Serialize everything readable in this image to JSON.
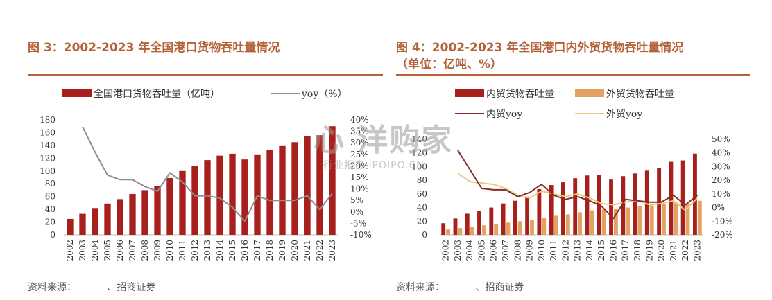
{
  "left": {
    "title": "图 3：2002-2023 年全国港口货物吞吐量情况",
    "source_prefix": "资料来源：",
    "source_suffix": "、招商证券",
    "legend": [
      "全国港口货物吞吐量（亿吨）",
      "yoy（%）"
    ]
  },
  "right": {
    "title_line1": "图 4：2002-2023 年全国港口内外贸货物吞吐量情况",
    "title_line2": "（单位：亿吨、%）",
    "source_prefix": "资料来源：",
    "source_suffix": "、招商证券",
    "legend": [
      "内贸货物吞吐量",
      "外贸货物吞吐量",
      "内贸yoy",
      "外贸yoy"
    ]
  },
  "watermark": {
    "main": "心 洋购家",
    "sub": "行业报告 IPOIPO.CN"
  },
  "colors": {
    "bar": "#a8201d",
    "line_gray": "#8c8c8c",
    "bar_foreign": "#e3a262",
    "line_domestic": "#8a2a2a",
    "line_foreign": "#e6cc7a",
    "accent": "#b4623a"
  },
  "chart_data": [
    {
      "type": "bar",
      "categories": [
        "2002",
        "2003",
        "2004",
        "2005",
        "2006",
        "2007",
        "2008",
        "2009",
        "2010",
        "2011",
        "2012",
        "2013",
        "2014",
        "2015",
        "2016",
        "2017",
        "2018",
        "2019",
        "2020",
        "2021",
        "2022",
        "2023"
      ],
      "series": [
        {
          "name": "全国港口货物吞吐量（亿吨）",
          "type": "bar",
          "axis": "left",
          "values": [
            25,
            33,
            42,
            49,
            56,
            64,
            70,
            76,
            89,
            100,
            108,
            117,
            124,
            127,
            118,
            126,
            133,
            139,
            145,
            155,
            156,
            170
          ]
        },
        {
          "name": "yoy（%）",
          "type": "line",
          "axis": "right",
          "values": [
            null,
            37,
            26,
            16,
            14,
            14,
            11,
            9,
            17,
            13,
            7,
            7,
            6,
            2,
            -4,
            7,
            5,
            5,
            5,
            7,
            1,
            8
          ]
        }
      ],
      "y_left": {
        "min": 0,
        "max": 180,
        "ticks": [
          0,
          20,
          40,
          60,
          80,
          100,
          120,
          140,
          160,
          180
        ]
      },
      "y_right": {
        "min": -10,
        "max": 40,
        "ticks": [
          "-10%",
          "-5%",
          "0%",
          "5%",
          "10%",
          "15%",
          "20%",
          "25%",
          "30%",
          "35%",
          "40%"
        ]
      },
      "grid": false,
      "legend_position": "top"
    },
    {
      "type": "bar",
      "categories": [
        "2002",
        "2003",
        "2004",
        "2005",
        "2006",
        "2007",
        "2008",
        "2009",
        "2010",
        "2011",
        "2012",
        "2013",
        "2014",
        "2015",
        "2016",
        "2017",
        "2018",
        "2019",
        "2020",
        "2021",
        "2022",
        "2023"
      ],
      "series": [
        {
          "name": "内贸货物吞吐量",
          "type": "bar",
          "axis": "left",
          "values": [
            17,
            24,
            31,
            35,
            40,
            46,
            50,
            56,
            67,
            73,
            77,
            83,
            87,
            88,
            81,
            86,
            90,
            94,
            98,
            107,
            109,
            119
          ]
        },
        {
          "name": "外贸货物吞吐量",
          "type": "bar",
          "axis": "left",
          "values": [
            8,
            10,
            12,
            14,
            16,
            18,
            20,
            22,
            25,
            28,
            30,
            33,
            36,
            37,
            38,
            40,
            42,
            43,
            45,
            47,
            46,
            50
          ]
        },
        {
          "name": "内贸yoy",
          "type": "line",
          "axis": "right",
          "values": [
            null,
            42,
            28,
            14,
            13,
            13,
            8,
            11,
            17,
            9,
            6,
            8,
            5,
            1,
            -8,
            6,
            5,
            4,
            4,
            9,
            2,
            9
          ]
        },
        {
          "name": "外贸yoy",
          "type": "line",
          "axis": "right",
          "values": [
            null,
            25,
            19,
            18,
            17,
            14,
            9,
            7,
            12,
            10,
            8,
            10,
            7,
            3,
            2,
            4,
            5,
            2,
            3,
            5,
            -2,
            7
          ]
        }
      ],
      "y_left": {
        "min": 0,
        "max": 140,
        "ticks": [
          0,
          20,
          40,
          60,
          80,
          100,
          120,
          140
        ]
      },
      "y_right": {
        "min": -20,
        "max": 50,
        "ticks": [
          "-20%",
          "-10%",
          "0%",
          "10%",
          "20%",
          "30%",
          "40%",
          "50%"
        ]
      },
      "grid": false,
      "legend_position": "top"
    }
  ]
}
